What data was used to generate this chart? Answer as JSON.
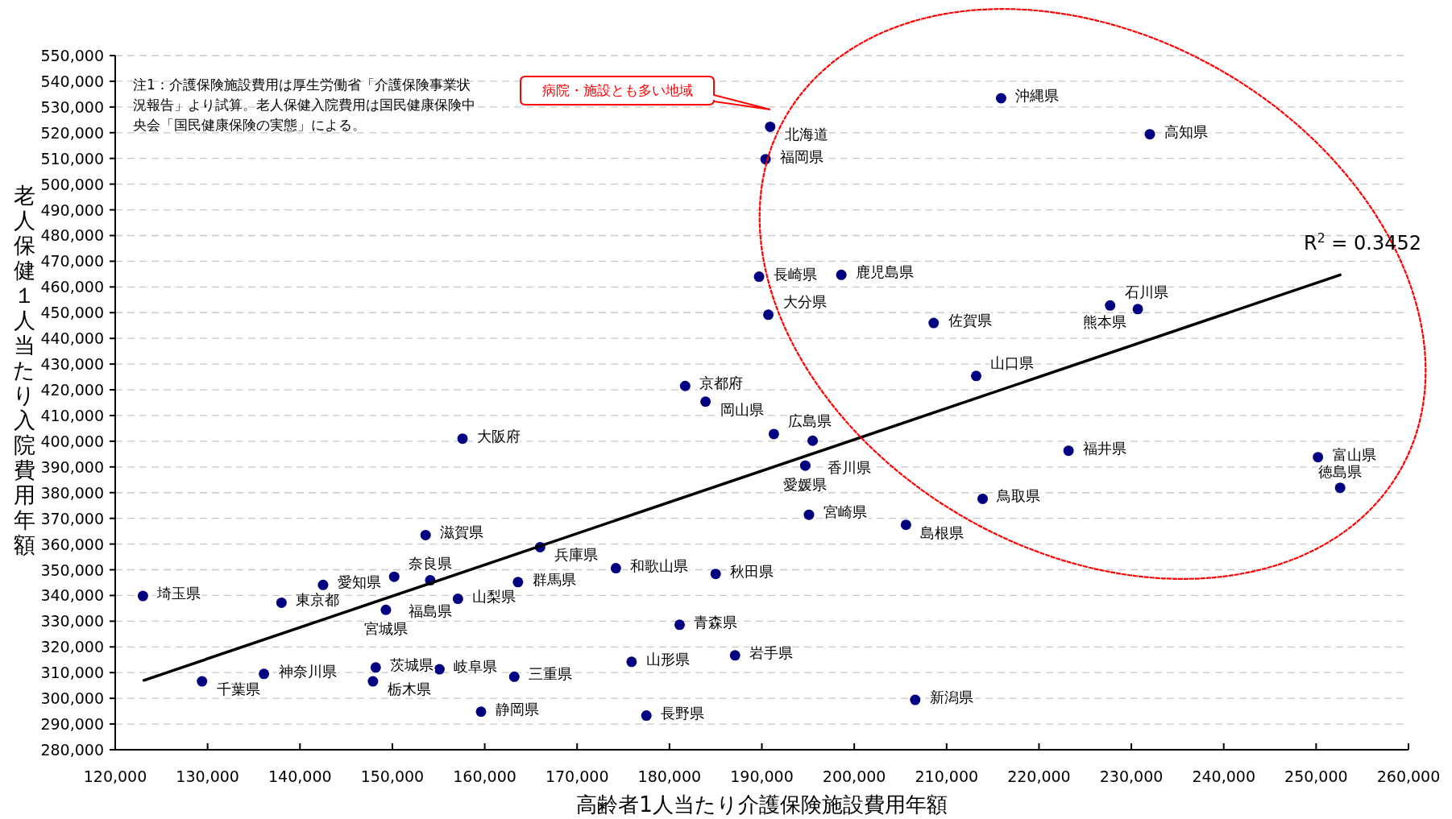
{
  "chart_data": {
    "type": "scatter",
    "xlabel": "高齢者1人当たり介護保険施設費用年額",
    "ylabel": "老人保健１人当たり入院費用年額",
    "grid": "y",
    "marker": "circle",
    "xlim": [
      120000,
      260000
    ],
    "ylim": [
      280000,
      550000
    ],
    "xticks": [
      {
        "value": 120000,
        "label": "120,000"
      },
      {
        "value": 130000,
        "label": "130,000"
      },
      {
        "value": 140000,
        "label": "140,000"
      },
      {
        "value": 150000,
        "label": "150,000"
      },
      {
        "value": 160000,
        "label": "160,000"
      },
      {
        "value": 170000,
        "label": "170,000"
      },
      {
        "value": 180000,
        "label": "180,000"
      },
      {
        "value": 190000,
        "label": "190,000"
      },
      {
        "value": 200000,
        "label": "200,000"
      },
      {
        "value": 210000,
        "label": "210,000"
      },
      {
        "value": 220000,
        "label": "220,000"
      },
      {
        "value": 230000,
        "label": "230,000"
      },
      {
        "value": 240000,
        "label": "240,000"
      },
      {
        "value": 250000,
        "label": "250,000"
      },
      {
        "value": 260000,
        "label": "260,000"
      }
    ],
    "yticks": [
      {
        "value": 280000,
        "label": "280,000"
      },
      {
        "value": 290000,
        "label": "290,000"
      },
      {
        "value": 300000,
        "label": "300,000"
      },
      {
        "value": 310000,
        "label": "310,000"
      },
      {
        "value": 320000,
        "label": "320,000"
      },
      {
        "value": 330000,
        "label": "330,000"
      },
      {
        "value": 340000,
        "label": "340,000"
      },
      {
        "value": 350000,
        "label": "350,000"
      },
      {
        "value": 360000,
        "label": "360,000"
      },
      {
        "value": 370000,
        "label": "370,000"
      },
      {
        "value": 380000,
        "label": "380,000"
      },
      {
        "value": 390000,
        "label": "390,000"
      },
      {
        "value": 400000,
        "label": "400,000"
      },
      {
        "value": 410000,
        "label": "410,000"
      },
      {
        "value": 420000,
        "label": "420,000"
      },
      {
        "value": 430000,
        "label": "430,000"
      },
      {
        "value": 440000,
        "label": "440,000"
      },
      {
        "value": 450000,
        "label": "450,000"
      },
      {
        "value": 460000,
        "label": "460,000"
      },
      {
        "value": 470000,
        "label": "470,000"
      },
      {
        "value": 480000,
        "label": "480,000"
      },
      {
        "value": 490000,
        "label": "490,000"
      },
      {
        "value": 500000,
        "label": "500,000"
      },
      {
        "value": 510000,
        "label": "510,000"
      },
      {
        "value": 520000,
        "label": "520,000"
      },
      {
        "value": 530000,
        "label": "530,000"
      },
      {
        "value": 540000,
        "label": "540,000"
      },
      {
        "value": 550000,
        "label": "550,000"
      }
    ],
    "series": [
      {
        "color": "#000080",
        "x": [
          215900,
          232000,
          190900,
          190400,
          189700,
          198600,
          190700,
          208600,
          227700,
          230700,
          213200,
          181700,
          183900,
          191300,
          195500,
          157600,
          194700,
          223200,
          250200,
          252600,
          213900,
          195100,
          205600,
          153600,
          166000,
          150200,
          142500,
          123000,
          138000,
          154100,
          163600,
          174200,
          185000,
          157100,
          149300,
          181100,
          187100,
          175900,
          129400,
          136100,
          148200,
          147900,
          155100,
          163200,
          159600,
          177500,
          206600
        ],
        "values": [
          533400,
          519400,
          522300,
          509700,
          464000,
          464700,
          449200,
          446000,
          452800,
          451400,
          425400,
          421500,
          415400,
          402800,
          400200,
          401000,
          390500,
          396300,
          393800,
          381900,
          377600,
          371400,
          367500,
          363500,
          358800,
          347300,
          344100,
          339800,
          337200,
          345900,
          345200,
          350600,
          348400,
          338700,
          334400,
          328600,
          316700,
          314200,
          306600,
          309500,
          312000,
          306600,
          311300,
          308400,
          294800,
          293300,
          299400
        ]
      },
      {
        "type": "line",
        "marker": "none",
        "color": "#000000",
        "x": [
          123100,
          252600
        ],
        "values": [
          307000,
          464700
        ]
      }
    ],
    "annotations": [
      "注1：介護保険施設費用は厚生労働省「介護保険事業状況報告」より試算。老人保健入院費用は国民健康保険中央会「国民健康保険の実態」による。",
      "病院・施設とも多い地域",
      "R$^{2}$ = 0.3452",
      {
        "text": "沖縄県",
        "x": 215900,
        "y": 533400
      },
      {
        "text": "高知県",
        "x": 232000,
        "y": 519400
      },
      {
        "text": "北海道",
        "x": 190900,
        "y": 522300
      },
      {
        "text": "福岡県",
        "x": 190400,
        "y": 509700
      },
      {
        "text": "長崎県",
        "x": 189700,
        "y": 464000
      },
      {
        "text": "鹿児島県",
        "x": 198600,
        "y": 464700
      },
      {
        "text": "大分県",
        "x": 190700,
        "y": 449200
      },
      {
        "text": "佐賀県",
        "x": 208600,
        "y": 446000
      },
      {
        "text": "石川県",
        "x": 227700,
        "y": 452800
      },
      {
        "text": "熊本県",
        "x": 230700,
        "y": 451400
      },
      {
        "text": "山口県",
        "x": 213200,
        "y": 425400
      },
      {
        "text": "京都府",
        "x": 181700,
        "y": 421500
      },
      {
        "text": "岡山県",
        "x": 183900,
        "y": 415400
      },
      {
        "text": "広島県",
        "x": 191300,
        "y": 402800
      },
      {
        "text": "香川県",
        "x": 195500,
        "y": 400200
      },
      {
        "text": "大阪府",
        "x": 157600,
        "y": 401000
      },
      {
        "text": "愛媛県",
        "x": 194700,
        "y": 390500
      },
      {
        "text": "福井県",
        "x": 223200,
        "y": 396300
      },
      {
        "text": "富山県",
        "x": 250200,
        "y": 393800
      },
      {
        "text": "徳島県",
        "x": 252600,
        "y": 381900
      },
      {
        "text": "鳥取県",
        "x": 213900,
        "y": 377600
      },
      {
        "text": "宮崎県",
        "x": 195100,
        "y": 371400
      },
      {
        "text": "島根県",
        "x": 205600,
        "y": 367500
      },
      {
        "text": "滋賀県",
        "x": 153600,
        "y": 363500
      },
      {
        "text": "兵庫県",
        "x": 166000,
        "y": 358800
      },
      {
        "text": "奈良県",
        "x": 150200,
        "y": 347300
      },
      {
        "text": "愛知県",
        "x": 142500,
        "y": 344100
      },
      {
        "text": "埼玉県",
        "x": 123000,
        "y": 339800
      },
      {
        "text": "東京都",
        "x": 138000,
        "y": 337200
      },
      {
        "text": "福島県",
        "x": 154100,
        "y": 345900
      },
      {
        "text": "群馬県",
        "x": 163600,
        "y": 345200
      },
      {
        "text": "和歌山県",
        "x": 174200,
        "y": 350600
      },
      {
        "text": "秋田県",
        "x": 185000,
        "y": 348400
      },
      {
        "text": "山梨県",
        "x": 157100,
        "y": 338700
      },
      {
        "text": "宮城県",
        "x": 149300,
        "y": 334400
      },
      {
        "text": "青森県",
        "x": 181100,
        "y": 328600
      },
      {
        "text": "岩手県",
        "x": 187100,
        "y": 316700
      },
      {
        "text": "山形県",
        "x": 175900,
        "y": 314200
      },
      {
        "text": "千葉県",
        "x": 129400,
        "y": 306600
      },
      {
        "text": "神奈川県",
        "x": 136100,
        "y": 309500
      },
      {
        "text": "茨城県",
        "x": 148200,
        "y": 312000
      },
      {
        "text": "栃木県",
        "x": 147900,
        "y": 306600
      },
      {
        "text": "岐阜県",
        "x": 155100,
        "y": 311300
      },
      {
        "text": "三重県",
        "x": 163200,
        "y": 308400
      },
      {
        "text": "静岡県",
        "x": 159600,
        "y": 294800
      },
      {
        "text": "長野県",
        "x": 177500,
        "y": 293300
      },
      {
        "text": "新潟県",
        "x": 206600,
        "y": 299400
      }
    ]
  }
}
